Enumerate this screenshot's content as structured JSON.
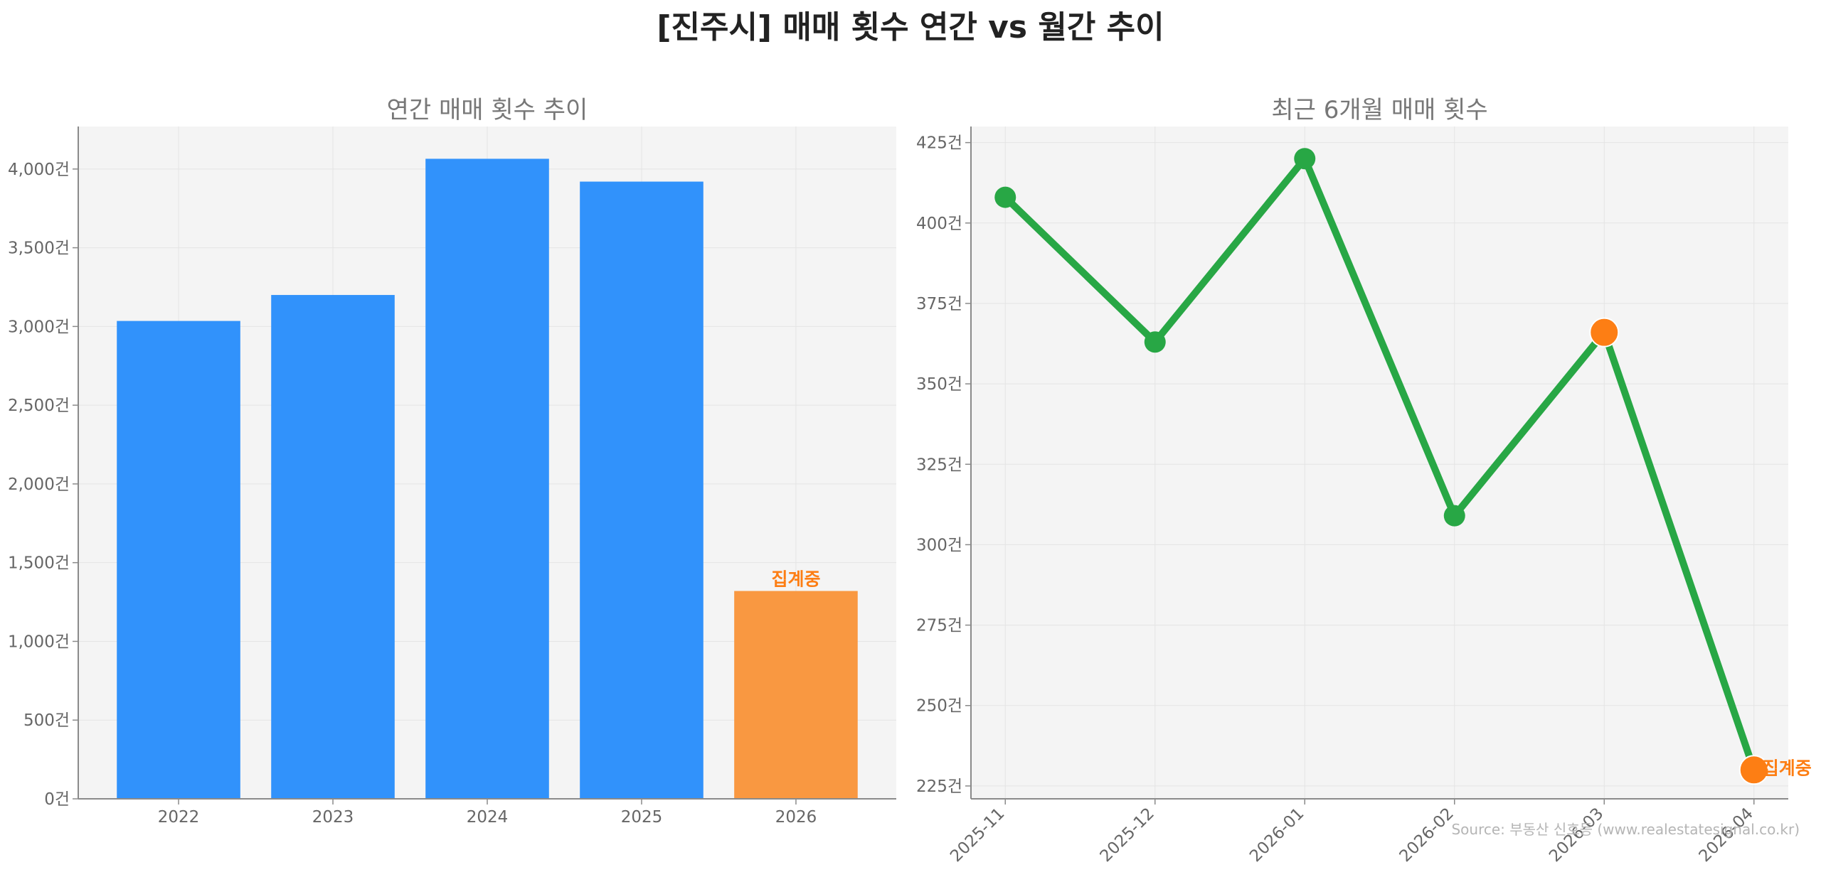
{
  "title": "[진주시] 매매 횟수 연간 vs 월간 추이",
  "source": "Source: 부동산 신호등 (www.realestatesignal.co.kr)",
  "colors": {
    "bar": "#3192fb",
    "bar_pending": "#f99841",
    "line": "#28a745",
    "marker": "#28a745",
    "marker_pending": "#fd7e14",
    "annotation": "#fd7e14",
    "panel_bg": "#f4f4f4",
    "grid": "#e4e4e4"
  },
  "chart_data": [
    {
      "type": "bar",
      "title": "연간 매매 횟수 추이",
      "categories": [
        "2022",
        "2023",
        "2024",
        "2025",
        "2026"
      ],
      "values": [
        3035,
        3200,
        4065,
        3920,
        1320
      ],
      "pending": [
        false,
        false,
        false,
        false,
        true
      ],
      "annotations": [
        {
          "category": "2026",
          "text": "집계중"
        }
      ],
      "ylim": [
        0,
        4270
      ],
      "yticks": [
        0,
        500,
        1000,
        1500,
        2000,
        2500,
        3000,
        3500,
        4000
      ],
      "ytick_labels": [
        "0건",
        "500건",
        "1,000건",
        "1,500건",
        "2,000건",
        "2,500건",
        "3,000건",
        "3,500건",
        "4,000건"
      ],
      "grid": true
    },
    {
      "type": "line",
      "title": "최근 6개월 매매 횟수",
      "categories": [
        "2025-11",
        "2025-12",
        "2026-01",
        "2026-02",
        "2026-03",
        "2026-04"
      ],
      "values": [
        408,
        363,
        420,
        309,
        366,
        230
      ],
      "pending": [
        false,
        false,
        false,
        false,
        true,
        true
      ],
      "annotations": [
        {
          "category": "2026-04",
          "text": "집계중"
        }
      ],
      "ylim": [
        221,
        430
      ],
      "yticks": [
        225,
        250,
        275,
        300,
        325,
        350,
        375,
        400,
        425
      ],
      "ytick_labels": [
        "225건",
        "250건",
        "275건",
        "300건",
        "325건",
        "350건",
        "375건",
        "400건",
        "425건"
      ],
      "grid": true
    }
  ]
}
